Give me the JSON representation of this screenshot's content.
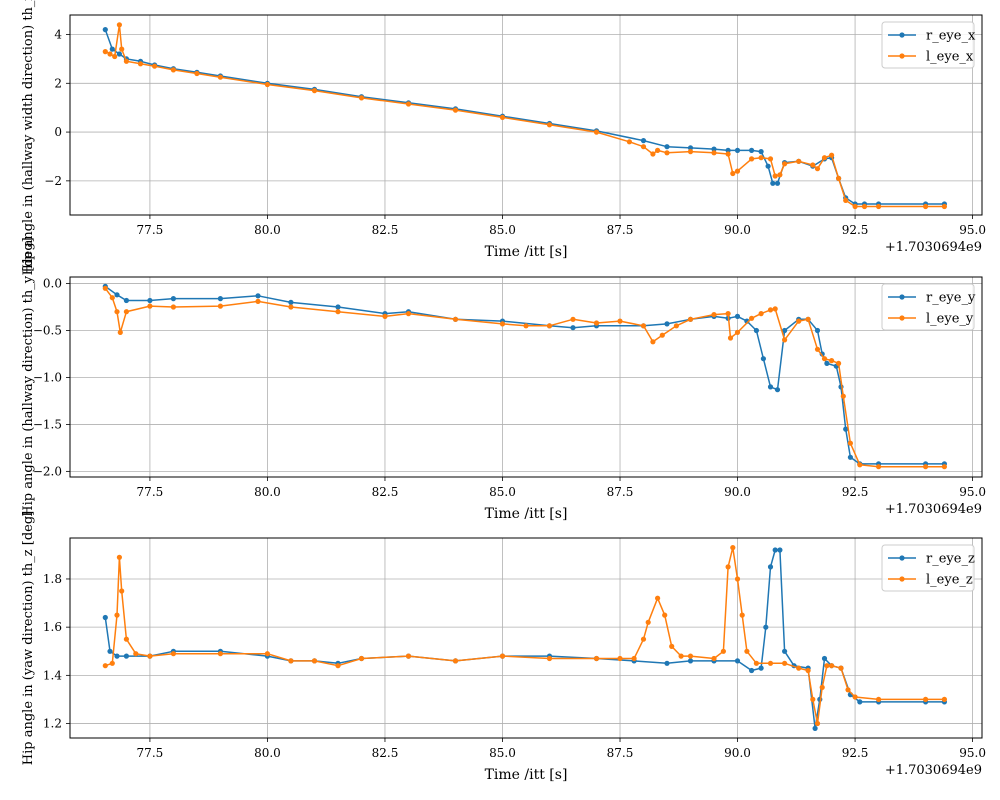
{
  "chart_data": [
    {
      "type": "line",
      "ylabel": "Hip angle in (hallway width direction) th_x [deg]",
      "xlabel": "Time /itt [s]",
      "offset_label": "+1.7030694e9",
      "xlim": [
        75.8,
        95.2
      ],
      "ylim": [
        -3.4,
        4.8
      ],
      "xticks": [
        "77.5",
        "80.0",
        "82.5",
        "85.0",
        "87.5",
        "90.0",
        "92.5",
        "95.0"
      ],
      "yticks": [
        "4",
        "2",
        "0",
        "−2"
      ],
      "ytick_values": [
        4,
        2,
        0,
        -2
      ],
      "grid": true,
      "legend_position": "upper right",
      "series": [
        {
          "name": "r_eye_x",
          "color": "#1f77b4",
          "x": [
            76.55,
            76.7,
            76.85,
            77.0,
            77.3,
            77.6,
            78.0,
            78.5,
            79.0,
            80.0,
            81.0,
            82.0,
            83.0,
            84.0,
            85.0,
            86.0,
            87.0,
            88.0,
            88.5,
            89.0,
            89.5,
            89.8,
            90.0,
            90.3,
            90.5,
            90.65,
            90.75,
            90.85,
            91.0,
            91.3,
            91.6,
            91.85,
            92.0,
            92.15,
            92.3,
            92.5,
            92.7,
            93.0,
            94.0,
            94.4
          ],
          "y": [
            4.2,
            3.4,
            3.2,
            3.0,
            2.9,
            2.75,
            2.6,
            2.45,
            2.3,
            2.0,
            1.75,
            1.45,
            1.2,
            0.95,
            0.65,
            0.35,
            0.05,
            -0.35,
            -0.6,
            -0.65,
            -0.7,
            -0.75,
            -0.75,
            -0.75,
            -0.8,
            -1.4,
            -2.1,
            -2.1,
            -1.25,
            -1.2,
            -1.4,
            -1.1,
            -1.05,
            -1.9,
            -2.7,
            -2.95,
            -2.95,
            -2.95,
            -2.95,
            -2.95
          ]
        },
        {
          "name": "l_eye_x",
          "color": "#ff7f0e",
          "x": [
            76.55,
            76.65,
            76.75,
            76.85,
            76.9,
            77.0,
            77.3,
            77.6,
            78.0,
            78.5,
            79.0,
            80.0,
            81.0,
            82.0,
            83.0,
            84.0,
            85.0,
            86.0,
            87.0,
            87.7,
            88.0,
            88.2,
            88.3,
            88.5,
            89.0,
            89.5,
            89.8,
            89.9,
            90.0,
            90.3,
            90.5,
            90.7,
            90.8,
            90.9,
            91.0,
            91.3,
            91.6,
            91.7,
            91.85,
            92.0,
            92.15,
            92.3,
            92.5,
            92.7,
            93.0,
            94.0,
            94.4
          ],
          "y": [
            3.3,
            3.2,
            3.1,
            4.4,
            3.4,
            2.9,
            2.8,
            2.7,
            2.55,
            2.4,
            2.25,
            1.95,
            1.7,
            1.4,
            1.15,
            0.9,
            0.6,
            0.3,
            0.0,
            -0.4,
            -0.6,
            -0.9,
            -0.75,
            -0.85,
            -0.8,
            -0.85,
            -0.9,
            -1.7,
            -1.6,
            -1.1,
            -1.05,
            -1.1,
            -1.8,
            -1.75,
            -1.3,
            -1.2,
            -1.35,
            -1.5,
            -1.05,
            -0.95,
            -1.9,
            -2.8,
            -3.05,
            -3.05,
            -3.05,
            -3.05,
            -3.05
          ]
        }
      ]
    },
    {
      "type": "line",
      "ylabel": "Hip angle in (hallway direction) th_y [deg]",
      "xlabel": "Time /itt [s]",
      "offset_label": "+1.7030694e9",
      "xlim": [
        75.8,
        95.2
      ],
      "ylim": [
        -2.06,
        0.07
      ],
      "xticks": [
        "77.5",
        "80.0",
        "82.5",
        "85.0",
        "87.5",
        "90.0",
        "92.5",
        "95.0"
      ],
      "yticks": [
        "0.0",
        "−0.5",
        "−1.0",
        "−1.5",
        "−2.0"
      ],
      "ytick_values": [
        0.0,
        -0.5,
        -1.0,
        -1.5,
        -2.0
      ],
      "grid": true,
      "legend_position": "upper right",
      "series": [
        {
          "name": "r_eye_y",
          "color": "#1f77b4",
          "x": [
            76.55,
            76.8,
            77.0,
            77.5,
            78.0,
            79.0,
            79.8,
            80.5,
            81.5,
            82.5,
            83.0,
            84.0,
            85.0,
            86.0,
            86.5,
            87.0,
            88.0,
            88.5,
            89.0,
            89.5,
            89.8,
            90.0,
            90.2,
            90.4,
            90.55,
            90.7,
            90.85,
            91.0,
            91.3,
            91.5,
            91.7,
            91.8,
            91.9,
            92.1,
            92.2,
            92.3,
            92.4,
            92.6,
            93.0,
            94.0,
            94.4
          ],
          "y": [
            -0.03,
            -0.12,
            -0.18,
            -0.18,
            -0.16,
            -0.16,
            -0.13,
            -0.2,
            -0.25,
            -0.32,
            -0.3,
            -0.38,
            -0.4,
            -0.45,
            -0.47,
            -0.45,
            -0.45,
            -0.43,
            -0.38,
            -0.35,
            -0.37,
            -0.35,
            -0.4,
            -0.5,
            -0.8,
            -1.1,
            -1.13,
            -0.5,
            -0.38,
            -0.38,
            -0.5,
            -0.75,
            -0.85,
            -0.88,
            -1.1,
            -1.55,
            -1.85,
            -1.92,
            -1.92,
            -1.92,
            -1.92
          ]
        },
        {
          "name": "l_eye_y",
          "color": "#ff7f0e",
          "x": [
            76.55,
            76.7,
            76.8,
            76.87,
            77.0,
            77.5,
            78.0,
            79.0,
            79.8,
            80.5,
            81.5,
            82.5,
            83.0,
            84.0,
            85.0,
            85.5,
            86.0,
            86.5,
            87.0,
            87.5,
            88.0,
            88.2,
            88.4,
            88.7,
            89.0,
            89.5,
            89.8,
            89.85,
            90.0,
            90.3,
            90.5,
            90.7,
            90.8,
            91.0,
            91.3,
            91.5,
            91.7,
            91.85,
            92.0,
            92.15,
            92.25,
            92.4,
            92.6,
            93.0,
            94.0,
            94.4
          ],
          "y": [
            -0.05,
            -0.15,
            -0.3,
            -0.52,
            -0.3,
            -0.24,
            -0.25,
            -0.24,
            -0.19,
            -0.25,
            -0.3,
            -0.35,
            -0.32,
            -0.38,
            -0.43,
            -0.45,
            -0.45,
            -0.38,
            -0.42,
            -0.4,
            -0.45,
            -0.62,
            -0.55,
            -0.45,
            -0.38,
            -0.33,
            -0.32,
            -0.58,
            -0.52,
            -0.37,
            -0.32,
            -0.28,
            -0.27,
            -0.6,
            -0.4,
            -0.38,
            -0.7,
            -0.8,
            -0.82,
            -0.85,
            -1.2,
            -1.7,
            -1.93,
            -1.95,
            -1.95,
            -1.95
          ]
        }
      ]
    },
    {
      "type": "line",
      "ylabel": "Hip angle in (yaw direction) th_z [deg]",
      "xlabel": "Time /itt [s]",
      "offset_label": "+1.7030694e9",
      "xlim": [
        75.8,
        95.2
      ],
      "ylim": [
        1.14,
        1.97
      ],
      "xticks": [
        "77.5",
        "80.0",
        "82.5",
        "85.0",
        "87.5",
        "90.0",
        "92.5",
        "95.0"
      ],
      "yticks": [
        "1.8",
        "1.6",
        "1.4",
        "1.2"
      ],
      "ytick_values": [
        1.8,
        1.6,
        1.4,
        1.2
      ],
      "grid": true,
      "legend_position": "upper right",
      "series": [
        {
          "name": "r_eye_z",
          "color": "#1f77b4",
          "x": [
            76.55,
            76.65,
            76.8,
            77.0,
            77.5,
            78.0,
            79.0,
            80.0,
            80.5,
            81.0,
            81.5,
            82.0,
            83.0,
            84.0,
            85.0,
            86.0,
            87.0,
            87.8,
            88.5,
            89.0,
            89.5,
            90.0,
            90.3,
            90.5,
            90.6,
            90.7,
            90.8,
            90.9,
            91.0,
            91.2,
            91.5,
            91.65,
            91.75,
            91.85,
            92.0,
            92.2,
            92.4,
            92.6,
            93.0,
            94.0,
            94.4
          ],
          "y": [
            1.64,
            1.5,
            1.48,
            1.48,
            1.48,
            1.5,
            1.5,
            1.48,
            1.46,
            1.46,
            1.45,
            1.47,
            1.48,
            1.46,
            1.48,
            1.48,
            1.47,
            1.46,
            1.45,
            1.46,
            1.46,
            1.46,
            1.42,
            1.43,
            1.6,
            1.85,
            1.92,
            1.92,
            1.5,
            1.44,
            1.43,
            1.18,
            1.3,
            1.47,
            1.44,
            1.43,
            1.32,
            1.29,
            1.29,
            1.29,
            1.29
          ]
        },
        {
          "name": "l_eye_z",
          "color": "#ff7f0e",
          "x": [
            76.55,
            76.7,
            76.8,
            76.85,
            76.9,
            77.0,
            77.2,
            77.5,
            78.0,
            79.0,
            80.0,
            80.5,
            81.0,
            81.5,
            82.0,
            83.0,
            84.0,
            85.0,
            86.0,
            87.0,
            87.5,
            87.8,
            88.0,
            88.1,
            88.3,
            88.45,
            88.6,
            88.8,
            89.0,
            89.5,
            89.7,
            89.8,
            89.9,
            90.0,
            90.1,
            90.2,
            90.4,
            90.7,
            91.0,
            91.3,
            91.5,
            91.6,
            91.7,
            91.8,
            91.9,
            92.0,
            92.2,
            92.35,
            92.5,
            93.0,
            94.0,
            94.4
          ],
          "y": [
            1.44,
            1.45,
            1.65,
            1.89,
            1.75,
            1.55,
            1.49,
            1.48,
            1.49,
            1.49,
            1.49,
            1.46,
            1.46,
            1.44,
            1.47,
            1.48,
            1.46,
            1.48,
            1.47,
            1.47,
            1.47,
            1.47,
            1.55,
            1.62,
            1.72,
            1.65,
            1.52,
            1.48,
            1.48,
            1.47,
            1.5,
            1.85,
            1.93,
            1.8,
            1.65,
            1.5,
            1.45,
            1.45,
            1.45,
            1.43,
            1.42,
            1.3,
            1.2,
            1.35,
            1.44,
            1.44,
            1.43,
            1.34,
            1.31,
            1.3,
            1.3,
            1.3
          ]
        }
      ]
    }
  ]
}
